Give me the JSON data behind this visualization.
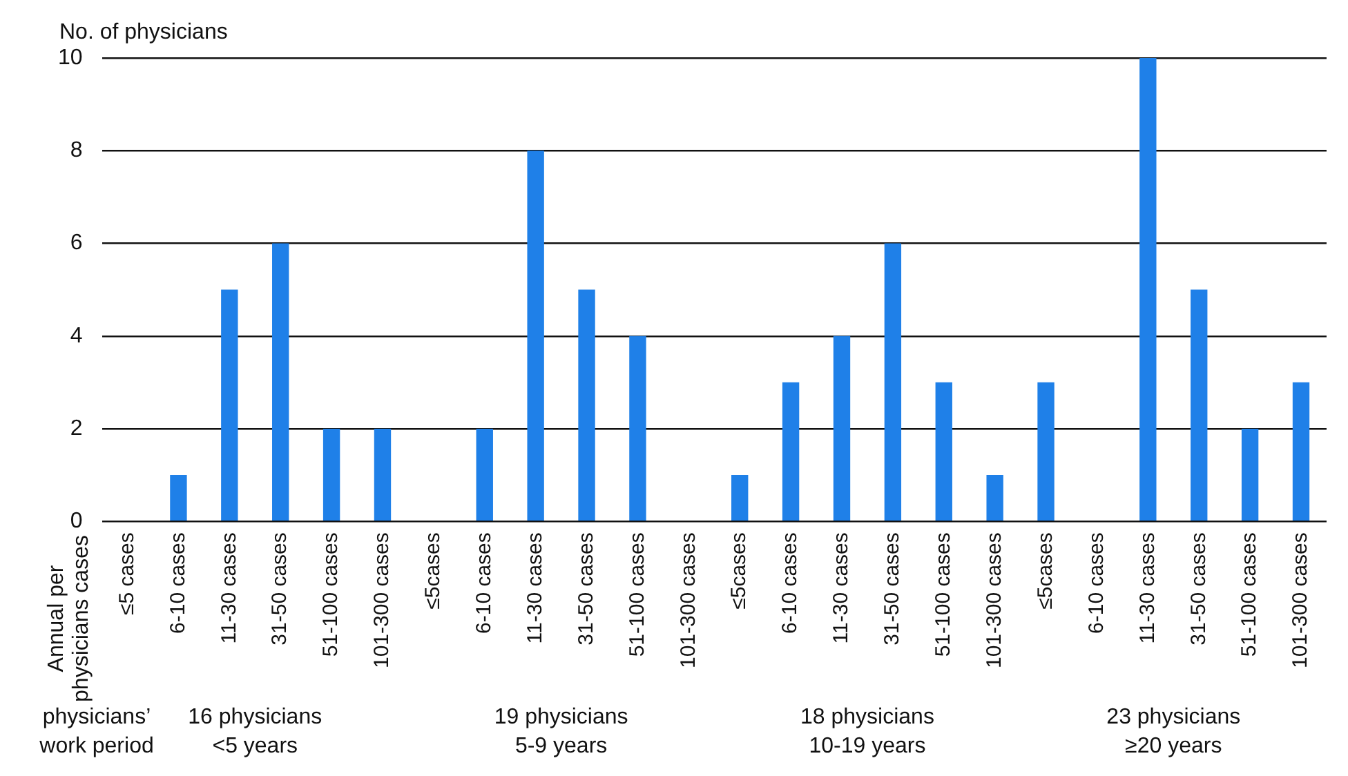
{
  "chart_data": {
    "type": "bar",
    "ylabel": "No. of physicians",
    "categories": [
      "≤5 cases",
      "6-10 cases",
      "11-30 cases",
      "31-50 cases",
      "51-100 cases",
      "101-300 cases",
      "≤5cases",
      "6-10 cases",
      "11-30 cases",
      "31-50 cases",
      "51-100 cases",
      "101-300 cases",
      "≤5cases",
      "6-10 cases",
      "11-30 cases",
      "31-50 cases",
      "51-100 cases",
      "101-300 cases",
      "≤5cases",
      "6-10 cases",
      "11-30 cases",
      "31-50 cases",
      "51-100 cases",
      "101-300 cases"
    ],
    "values": [
      0,
      1,
      5,
      6,
      2,
      2,
      0,
      2,
      8,
      5,
      4,
      0,
      1,
      3,
      4,
      6,
      3,
      1,
      3,
      0,
      10,
      5,
      2,
      3
    ],
    "color": "#1f80e8",
    "ylim": [
      0,
      10
    ],
    "yticks": [
      0,
      2,
      4,
      6,
      8,
      10
    ],
    "grid": "y",
    "legend": false,
    "annotations": [
      "Annual per\nphysicians cases",
      "physicians’\nwork period",
      "16 physicians\n<5 years",
      "19 physicians\n5-9 years",
      "18 physicians\n10-19 years",
      "23 physicians\n≥20 years"
    ]
  }
}
